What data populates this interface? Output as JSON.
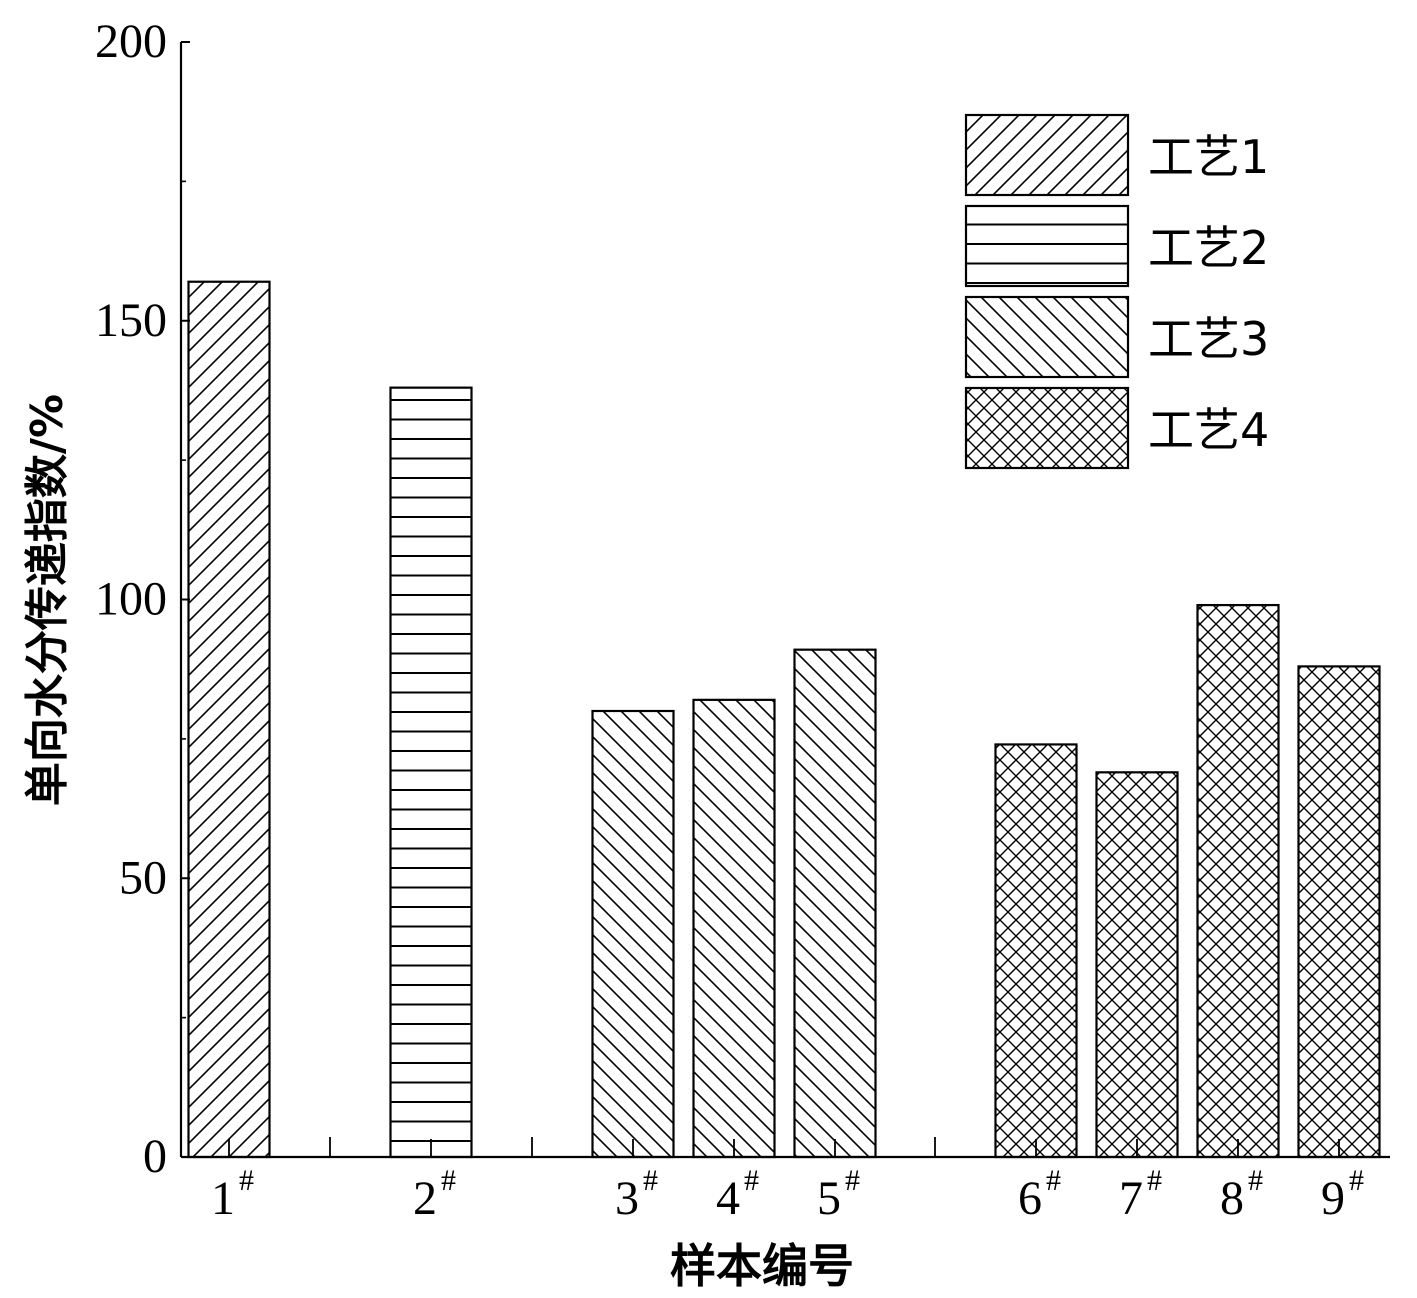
{
  "chart_data": {
    "type": "bar",
    "xlabel": "样本编号",
    "ylabel": "单向水分传递指数/%",
    "ylim": [
      0,
      200
    ],
    "yticks": [
      0,
      50,
      100,
      150,
      200
    ],
    "grid": false,
    "legend_position": "top-right",
    "category_suffix": "#",
    "categories": [
      "1",
      "2",
      "3",
      "4",
      "5",
      "6",
      "7",
      "8",
      "9"
    ],
    "groups": [
      {
        "name": "工艺1",
        "pattern": "diagonal-up",
        "categories": [
          "1"
        ],
        "values": [
          157
        ]
      },
      {
        "name": "工艺2",
        "pattern": "horizontal",
        "categories": [
          "2"
        ],
        "values": [
          138
        ]
      },
      {
        "name": "工艺3",
        "pattern": "diagonal-down",
        "categories": [
          "3",
          "4",
          "5"
        ],
        "values": [
          80,
          82,
          91
        ]
      },
      {
        "name": "工艺4",
        "pattern": "crosshatch",
        "categories": [
          "6",
          "7",
          "8",
          "9"
        ],
        "values": [
          74,
          69,
          99,
          88
        ]
      }
    ]
  }
}
